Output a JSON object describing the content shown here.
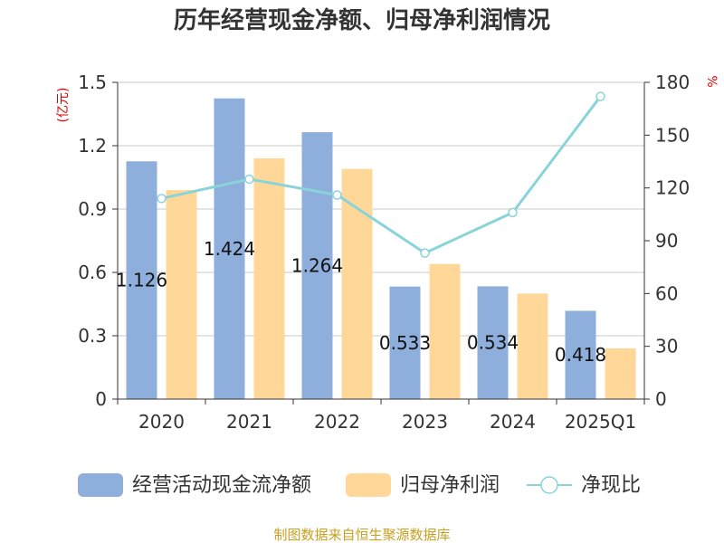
{
  "chart_data": {
    "type": "bar",
    "title": "历年经营现金净额、归母净利润情况",
    "categories": [
      "2020",
      "2021",
      "2022",
      "2023",
      "2024",
      "2025Q1"
    ],
    "left_axis": {
      "unit": "(亿元)",
      "min": 0,
      "max": 1.5,
      "ticks": [
        "0",
        "0.3",
        "0.6",
        "0.9",
        "1.2",
        "1.5"
      ]
    },
    "right_axis": {
      "unit": "%",
      "min": 0,
      "max": 180,
      "ticks": [
        "0",
        "30",
        "60",
        "90",
        "120",
        "150",
        "180"
      ]
    },
    "series": [
      {
        "name": "经营活动现金流净额",
        "type": "bar",
        "axis": "left",
        "color": "#8eaedc",
        "values": [
          1.126,
          1.424,
          1.264,
          0.533,
          0.534,
          0.418
        ],
        "labels": [
          "1.126",
          "1.424",
          "1.264",
          "0.533",
          "0.534",
          "0.418"
        ]
      },
      {
        "name": "归母净利润",
        "type": "bar",
        "axis": "left",
        "color": "#ffd899",
        "values": [
          0.99,
          1.14,
          1.09,
          0.64,
          0.5,
          0.24
        ]
      },
      {
        "name": "净现比",
        "type": "line",
        "axis": "right",
        "color": "#88d4d8",
        "values": [
          114,
          125,
          116,
          83,
          106,
          172
        ]
      }
    ],
    "grid": true,
    "legend": "bottom"
  },
  "source_note": "制图数据来自恒生聚源数据库"
}
